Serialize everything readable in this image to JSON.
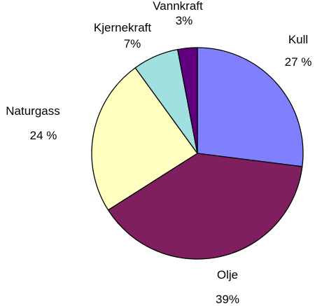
{
  "chart_data": {
    "type": "pie",
    "slices": [
      {
        "name": "Kull",
        "value": 27,
        "value_label": "27 %",
        "color": "#8080ff"
      },
      {
        "name": "Olje",
        "value": 39,
        "value_label": "39%",
        "color": "#7f1f5f"
      },
      {
        "name": "Naturgass",
        "value": 24,
        "value_label": "24 %",
        "color": "#ffffc0"
      },
      {
        "name": "Kjernekraft",
        "value": 7,
        "value_label": "7%",
        "color": "#a0e0e0"
      },
      {
        "name": "Vannkraft",
        "value": 3,
        "value_label": "3%",
        "color": "#60007f"
      }
    ],
    "start_angle": "12 o'clock",
    "direction": "clockwise",
    "legend": "none",
    "border_color": "#000000"
  }
}
